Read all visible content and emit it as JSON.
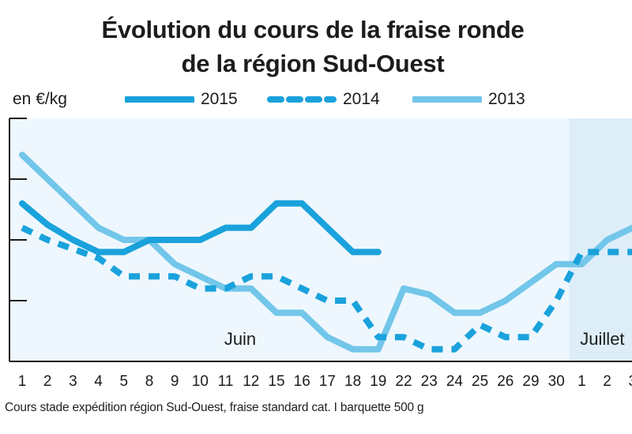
{
  "chart_data": {
    "type": "line",
    "title": "Évolution du cours de la fraise ronde",
    "subtitle": "de la région Sud-Ouest",
    "ylabel": "en €/kg",
    "ylim": [
      0,
      4
    ],
    "x": [
      "1",
      "2",
      "3",
      "4",
      "5",
      "8",
      "9",
      "10",
      "11",
      "12",
      "15",
      "16",
      "17",
      "18",
      "19",
      "22",
      "23",
      "24",
      "25",
      "26",
      "29",
      "30",
      "1",
      "2",
      "3"
    ],
    "months": [
      {
        "label": "Juin",
        "start_index": 0,
        "end_index": 21
      },
      {
        "label": "Juillet",
        "start_index": 22,
        "end_index": 24
      }
    ],
    "series": [
      {
        "name": "2015",
        "style": "solid",
        "color": "#1aa2dc",
        "values": [
          2.6,
          2.25,
          2.0,
          1.8,
          1.8,
          2.0,
          2.0,
          2.0,
          2.2,
          2.2,
          2.6,
          2.6,
          2.2,
          1.8,
          1.8,
          null,
          null,
          null,
          null,
          null,
          null,
          null,
          null,
          null,
          null
        ]
      },
      {
        "name": "2014",
        "style": "dashed",
        "color": "#1aa2dc",
        "values": [
          2.2,
          2.0,
          1.85,
          1.7,
          1.4,
          1.4,
          1.4,
          1.2,
          1.2,
          1.4,
          1.4,
          1.2,
          1.0,
          1.0,
          0.4,
          0.4,
          0.2,
          0.2,
          0.6,
          0.4,
          0.4,
          1.0,
          1.8,
          1.8,
          1.8
        ]
      },
      {
        "name": "2013",
        "style": "solid",
        "color": "#72c6ea",
        "values": [
          3.4,
          3.0,
          2.6,
          2.2,
          2.0,
          2.0,
          1.6,
          1.4,
          1.2,
          1.2,
          0.8,
          0.8,
          0.4,
          0.2,
          0.2,
          1.2,
          1.1,
          0.8,
          0.8,
          1.0,
          1.3,
          1.6,
          1.6,
          2.0,
          2.2
        ]
      }
    ],
    "grid": false,
    "legend_position": "top"
  },
  "note": "Cours stade expédition région Sud-Ouest, fraise standard cat. I barquette 500 g",
  "colors": {
    "line_dark": "#1aa2dc",
    "line_light": "#72c6ea",
    "panel_june": "#eef7fd",
    "panel_july": "#ddeef9",
    "axis": "#1c1c1c"
  }
}
